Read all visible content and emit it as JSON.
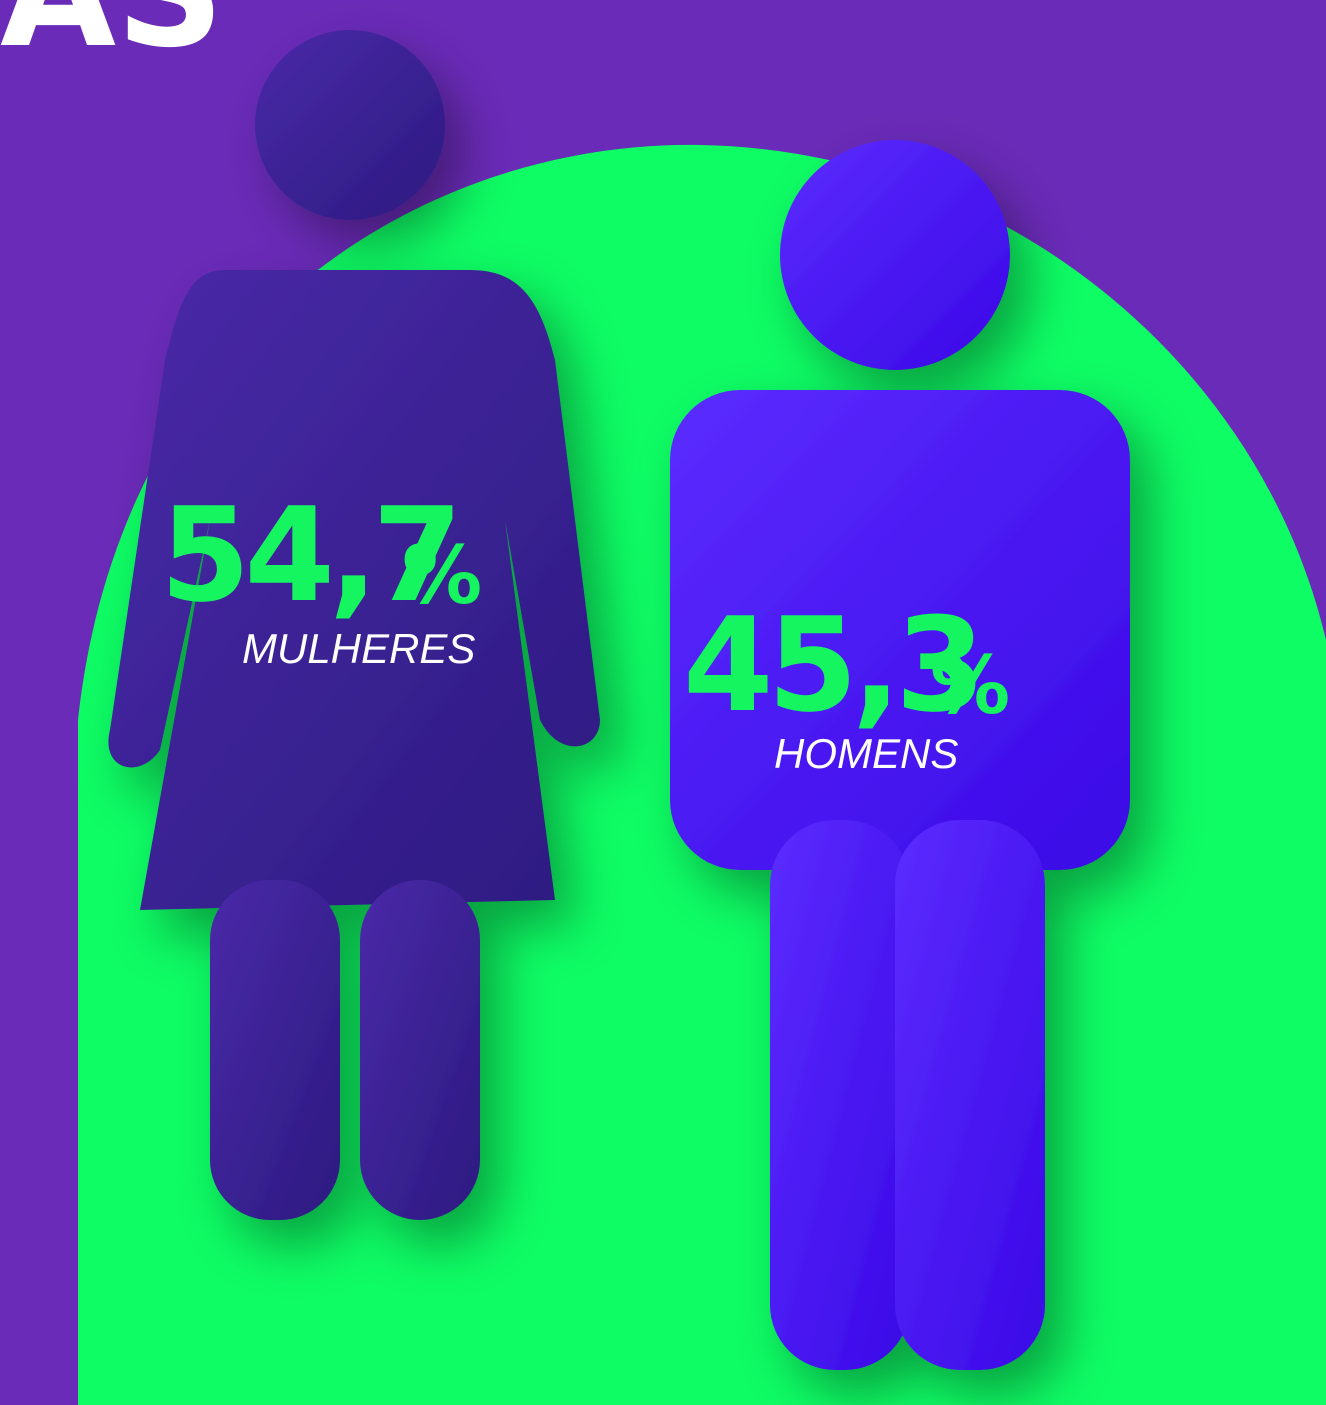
{
  "heading": "AS",
  "figures": [
    {
      "value": "54,7",
      "unit": "%",
      "label": "MULHERES"
    },
    {
      "value": "45,3",
      "unit": "%",
      "label": "HOMENS"
    }
  ]
}
